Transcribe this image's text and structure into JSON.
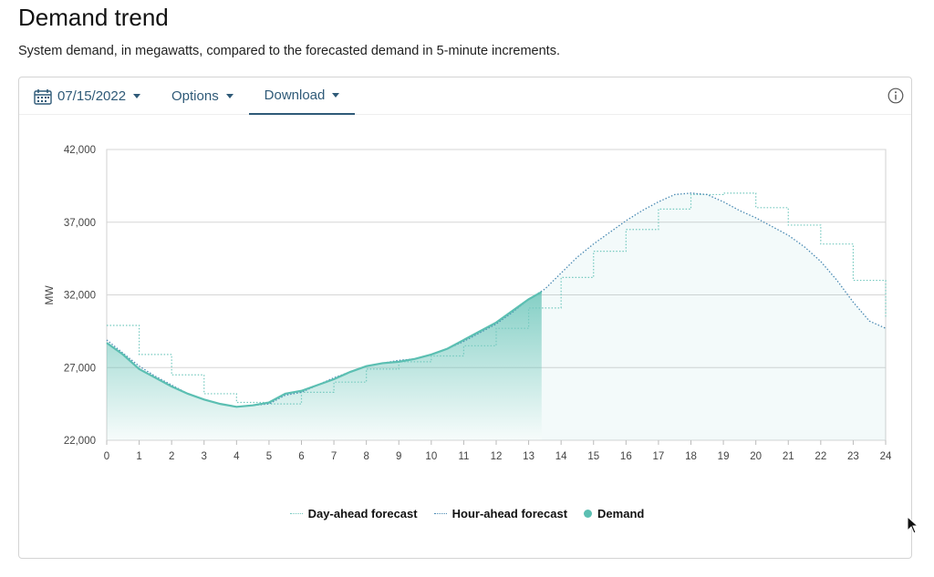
{
  "page": {
    "title": "Demand trend",
    "subtitle": "System demand, in megawatts, compared to the forecasted demand in 5-minute increments."
  },
  "toolbar": {
    "date": "07/15/2022",
    "options_label": "Options",
    "download_label": "Download"
  },
  "icons": {
    "calendar": "calendar-icon",
    "info": "info-icon",
    "cursor": "mouse-pointer-icon"
  },
  "colors": {
    "demand": "#5bbfb2",
    "day_ahead": "#74c9bf",
    "hour_ahead": "#4a8ab3",
    "link": "#2f5a78"
  },
  "chart_data": {
    "type": "area",
    "title": "",
    "xlabel": "",
    "ylabel": "MW",
    "xlim": [
      0,
      24
    ],
    "ylim": [
      22000,
      42000
    ],
    "x_ticks": [
      0,
      1,
      2,
      3,
      4,
      5,
      6,
      7,
      8,
      9,
      10,
      11,
      12,
      13,
      14,
      15,
      16,
      17,
      18,
      19,
      20,
      21,
      22,
      23,
      24
    ],
    "y_ticks": [
      22000,
      27000,
      32000,
      37000,
      42000
    ],
    "y_tick_labels": [
      "22,000",
      "27,000",
      "32,000",
      "37,000",
      "42,000"
    ],
    "grid": true,
    "legend_position": "bottom-center",
    "series": [
      {
        "name": "Day-ahead forecast",
        "style": "dotted step",
        "x": [
          0,
          1,
          2,
          3,
          4,
          5,
          6,
          7,
          8,
          9,
          10,
          11,
          12,
          13,
          14,
          15,
          16,
          17,
          18,
          19,
          20,
          21,
          22,
          23,
          24
        ],
        "values": [
          29900,
          27900,
          26500,
          25200,
          24600,
          24500,
          25300,
          26000,
          26900,
          27400,
          27800,
          28500,
          29700,
          31100,
          33200,
          35000,
          36500,
          37900,
          38900,
          39000,
          38000,
          36800,
          35500,
          33000,
          30500
        ]
      },
      {
        "name": "Hour-ahead forecast",
        "style": "dotted",
        "x": [
          0,
          0.5,
          1,
          1.5,
          2,
          2.5,
          3,
          3.5,
          4,
          4.5,
          5,
          5.5,
          6,
          6.5,
          7,
          7.5,
          8,
          8.5,
          9,
          9.5,
          10,
          10.5,
          11,
          11.5,
          12,
          12.5,
          13,
          13.5,
          14,
          14.5,
          15,
          15.5,
          16,
          16.5,
          17,
          17.5,
          18,
          18.5,
          19,
          19.5,
          20,
          20.5,
          21,
          21.5,
          22,
          22.5,
          23,
          23.5,
          24
        ],
        "values": [
          28900,
          28000,
          27100,
          26400,
          25800,
          25200,
          24800,
          24500,
          24300,
          24400,
          24500,
          25100,
          25300,
          25800,
          26300,
          26700,
          27100,
          27300,
          27500,
          27600,
          27900,
          28300,
          28800,
          29400,
          30000,
          30800,
          31700,
          32400,
          33500,
          34600,
          35500,
          36300,
          37100,
          37800,
          38400,
          38900,
          39000,
          38900,
          38400,
          37800,
          37300,
          36700,
          36100,
          35300,
          34300,
          33000,
          31500,
          30200,
          29700
        ]
      },
      {
        "name": "Demand",
        "style": "solid area",
        "x": [
          0,
          0.5,
          1,
          1.5,
          2,
          2.5,
          3,
          3.5,
          4,
          4.5,
          5,
          5.5,
          6,
          6.5,
          7,
          7.5,
          8,
          8.5,
          9,
          9.5,
          10,
          10.5,
          11,
          11.5,
          12,
          12.5,
          13,
          13.4
        ],
        "values": [
          28700,
          27900,
          26900,
          26300,
          25700,
          25200,
          24800,
          24500,
          24300,
          24400,
          24600,
          25200,
          25400,
          25800,
          26200,
          26700,
          27100,
          27300,
          27400,
          27600,
          27900,
          28300,
          28900,
          29500,
          30100,
          30900,
          31700,
          32200
        ]
      }
    ]
  }
}
